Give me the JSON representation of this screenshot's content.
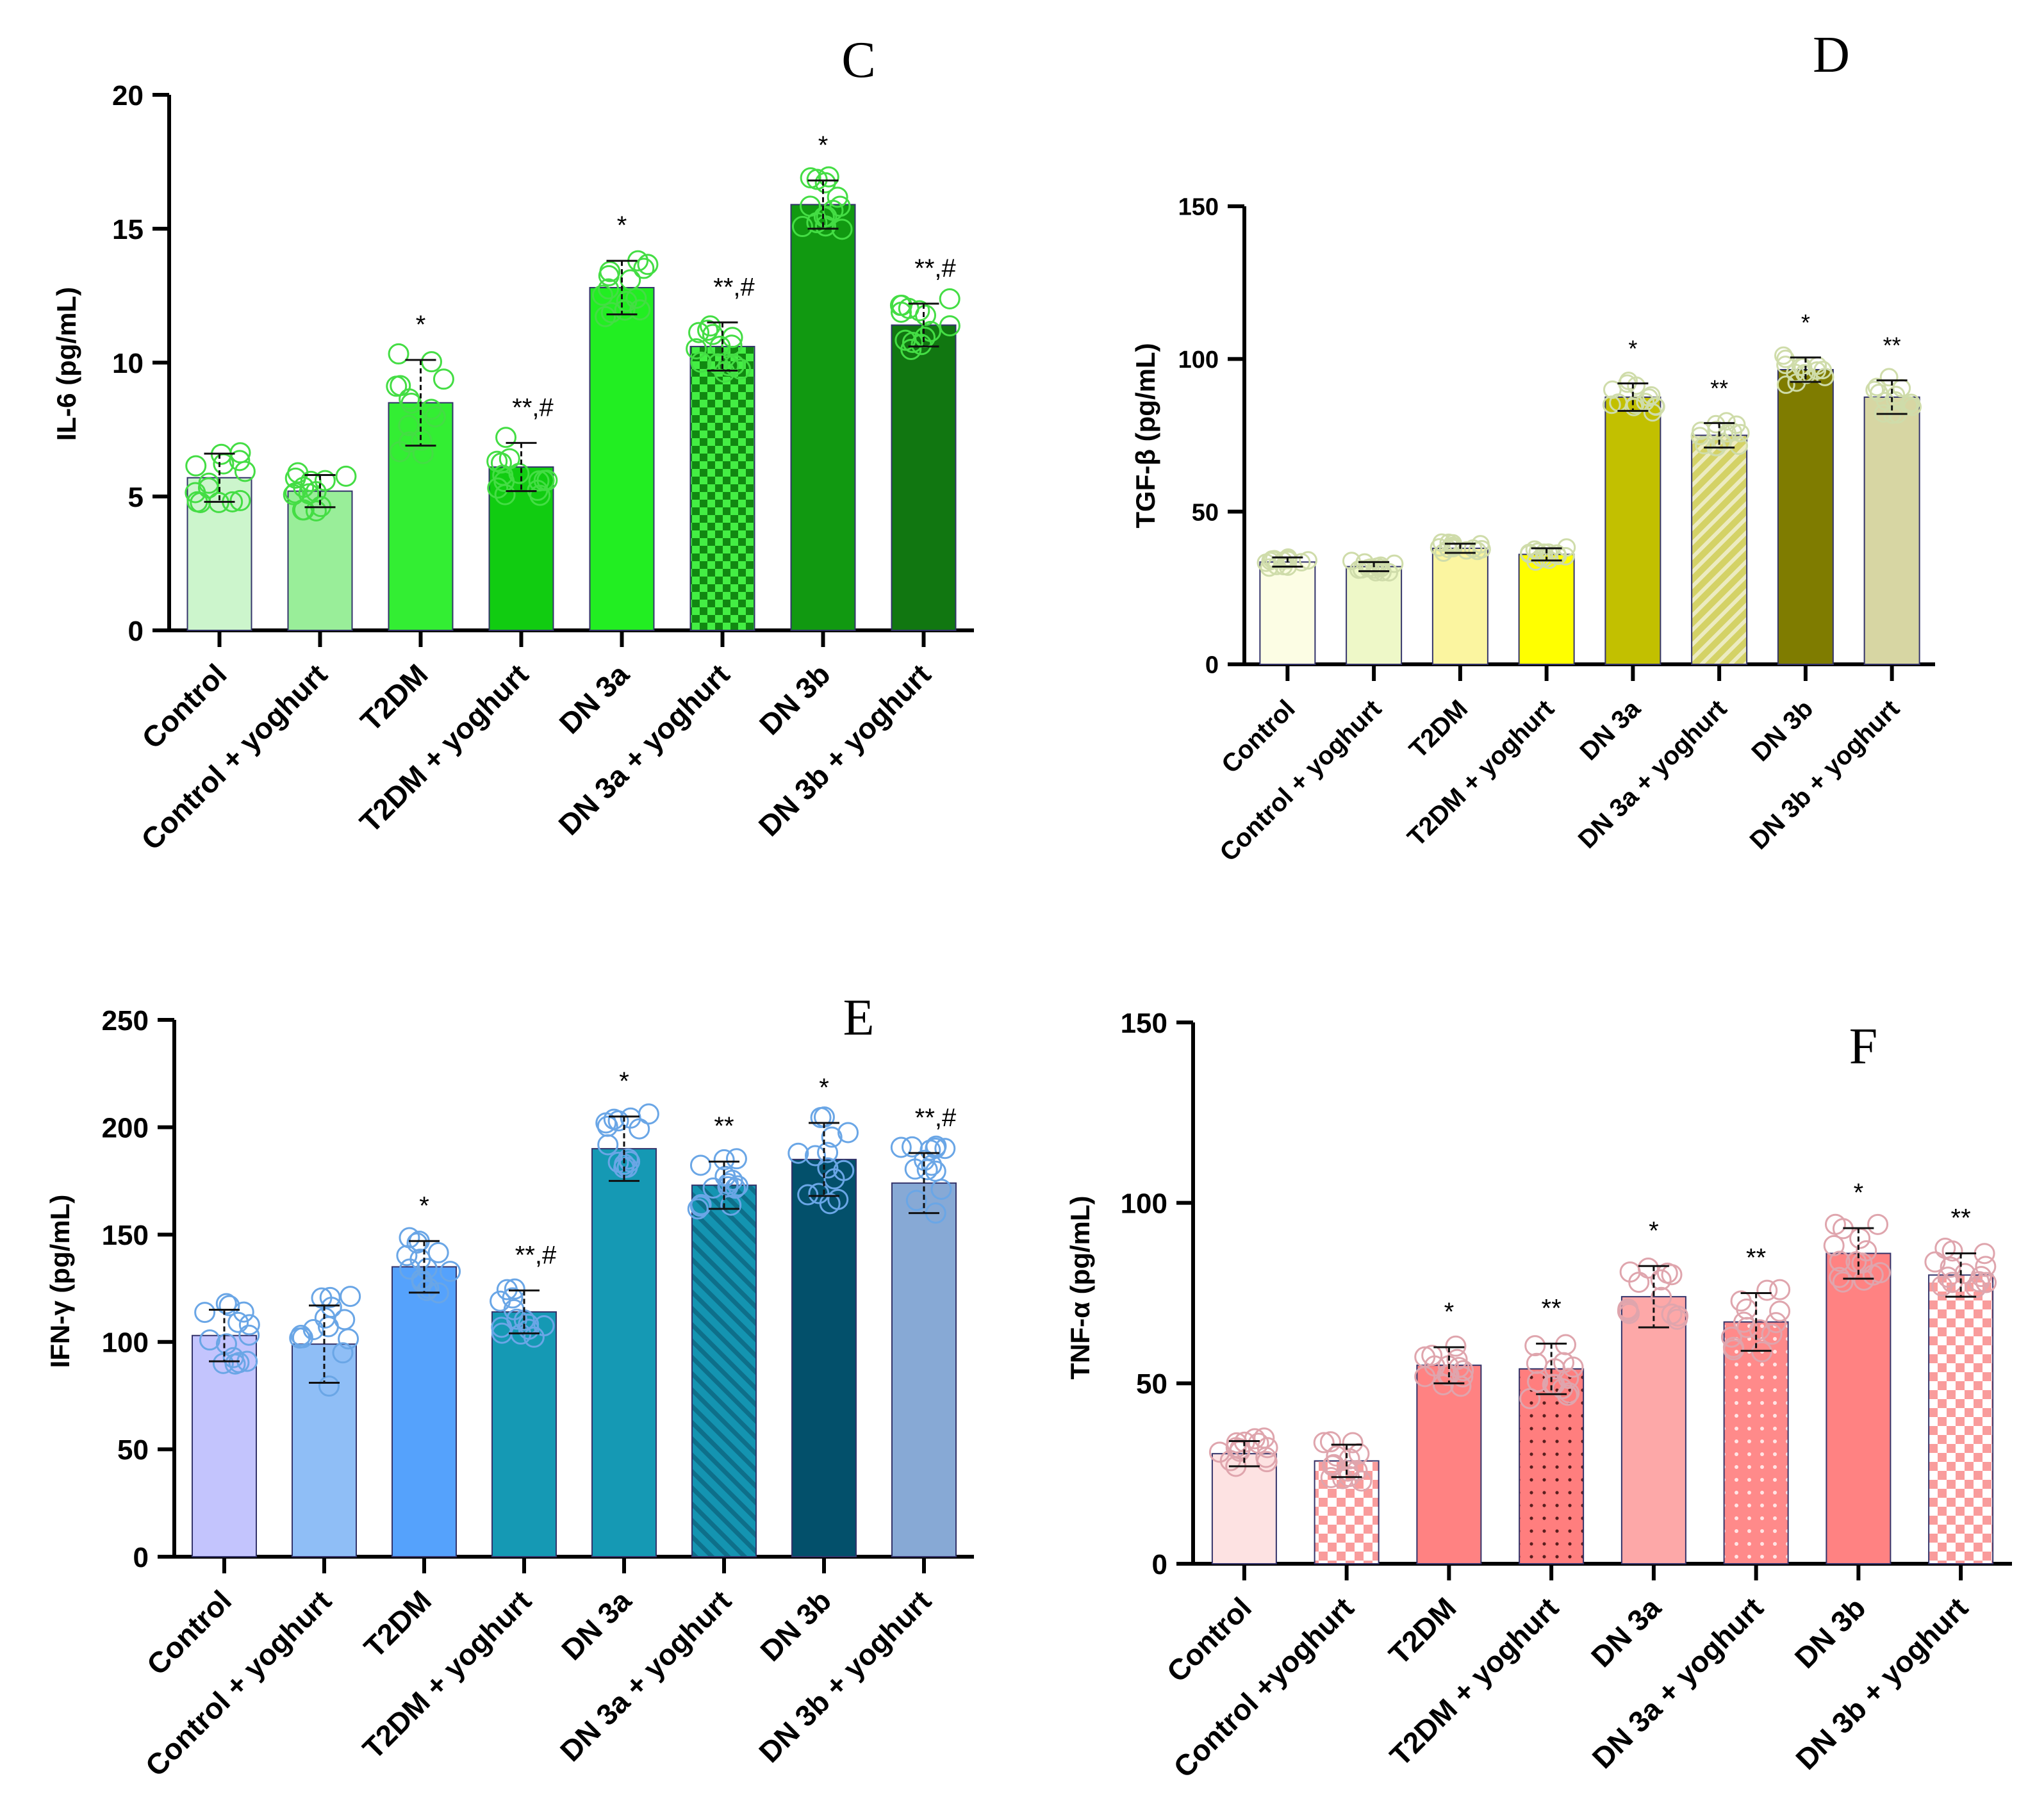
{
  "figure": {
    "background": "#ffffff"
  },
  "chart_data": [
    {
      "id": "C",
      "panel_letter": "C",
      "type": "bar",
      "ylabel": "IL-6 (pg/mL)",
      "ylim": [
        0,
        20
      ],
      "yticks": [
        0,
        5,
        10,
        15,
        20
      ],
      "yticks_text": [
        "0",
        "5",
        "10",
        "15",
        "20"
      ],
      "categories": [
        "Control",
        "Control + yoghurt",
        "T2DM",
        "T2DM + yoghurt",
        "DN 3a",
        "DN 3a + yoghurt",
        "DN 3b",
        "DN 3b + yoghurt"
      ],
      "values": [
        5.7,
        5.2,
        8.5,
        6.1,
        12.8,
        10.6,
        15.9,
        11.4
      ],
      "errors": [
        0.9,
        0.6,
        1.6,
        0.9,
        1.0,
        0.9,
        0.9,
        0.8
      ],
      "significance": [
        "",
        "",
        "*",
        "**,#",
        "*",
        "**,#",
        "*",
        "**,#"
      ],
      "bar_colors": [
        "#ccf5cc",
        "#99ee99",
        "#33ee33",
        "#11cc11",
        "#22ee22",
        "#22cc22",
        "#119911",
        "#117711"
      ],
      "patterns": [
        "none",
        "none",
        "none",
        "none",
        "none",
        "checker",
        "none",
        "none"
      ],
      "point_color": "#44dd44"
    },
    {
      "id": "D",
      "panel_letter": "D",
      "type": "bar",
      "ylabel": "TGF-β (pg/mL)",
      "ylim": [
        0,
        150
      ],
      "yticks": [
        0,
        50,
        100,
        150
      ],
      "yticks_text": [
        "0",
        "50",
        "100",
        "150"
      ],
      "categories": [
        "Control",
        "Control + yoghurt",
        "T2DM",
        "T2DM + yoghurt",
        "DN 3a",
        "DN 3a + yoghurt",
        "DN 3b",
        "DN 3b + yoghurt"
      ],
      "values": [
        33.5,
        32,
        38,
        36,
        87.5,
        75,
        96.5,
        87.5
      ],
      "errors": [
        1.5,
        1.5,
        1.5,
        2,
        4.5,
        4,
        4,
        5.5
      ],
      "significance": [
        "",
        "",
        "",
        "",
        "*",
        "**",
        "*",
        "**"
      ],
      "bar_colors": [
        "#fcfde4",
        "#eef8c8",
        "#fbf5a0",
        "#ffff00",
        "#c2c000",
        "#c8c644",
        "#7f7c00",
        "#d7d6a3"
      ],
      "patterns": [
        "none",
        "none",
        "none",
        "none",
        "none",
        "stripes",
        "none",
        "none"
      ],
      "point_color": "#cfdcaa"
    },
    {
      "id": "E",
      "panel_letter": "E",
      "type": "bar",
      "ylabel": "IFN-γ (pg/mL)",
      "ylim": [
        0,
        250
      ],
      "yticks": [
        0,
        50,
        100,
        150,
        200,
        250
      ],
      "yticks_text": [
        "0",
        "50",
        "100",
        "150",
        "200",
        "250"
      ],
      "categories": [
        "Control",
        "Control + yoghurt",
        "T2DM",
        "T2DM + yoghurt",
        "DN 3a",
        "DN 3a + yoghurt",
        "DN 3b",
        "DN 3b + yoghurt"
      ],
      "values": [
        103,
        99,
        135,
        114,
        190,
        173,
        185,
        174
      ],
      "errors": [
        12,
        18,
        12,
        10,
        15,
        11,
        17,
        14
      ],
      "significance": [
        "",
        "",
        "*",
        "**,#",
        "*",
        "**",
        "*",
        "**,#"
      ],
      "bar_colors": [
        "#c3c4fd",
        "#8fbef6",
        "#55a2fc",
        "#1599b4",
        "#1599b4",
        "#1494b1",
        "#03506b",
        "#87a9d5"
      ],
      "patterns": [
        "none",
        "none",
        "none",
        "none",
        "none",
        "stripes",
        "none",
        "none"
      ],
      "point_color": "#6aa6e6"
    },
    {
      "id": "F",
      "panel_letter": "F",
      "type": "bar",
      "ylabel": "TNF-α (pg/mL)",
      "ylim": [
        0,
        150
      ],
      "yticks": [
        0,
        50,
        100,
        150
      ],
      "yticks_text": [
        "0",
        "50",
        "100",
        "150"
      ],
      "categories": [
        "Control",
        "Control +yoghurt",
        "T2DM",
        "T2DM + yoghurt",
        "DN 3a",
        "DN 3a + yoghurt",
        "DN 3b",
        "DN 3b + yoghurt"
      ],
      "values": [
        30.5,
        28.5,
        55,
        54,
        74,
        67,
        86,
        80
      ],
      "errors": [
        3.5,
        4.5,
        5,
        7,
        8.5,
        8,
        7,
        6
      ],
      "significance": [
        "",
        "",
        "*",
        "**",
        "*",
        "**",
        "*",
        "**"
      ],
      "bar_colors": [
        "#fde2e2",
        "#fbbcbc",
        "#ff8282",
        "#ff7e7e",
        "#fda8a8",
        "#ff8a8a",
        "#ff8282",
        "#ff9a9a"
      ],
      "patterns": [
        "none",
        "checker",
        "none",
        "dots",
        "none",
        "dots",
        "none",
        "checker"
      ],
      "point_color": "#dfa5ad"
    }
  ]
}
